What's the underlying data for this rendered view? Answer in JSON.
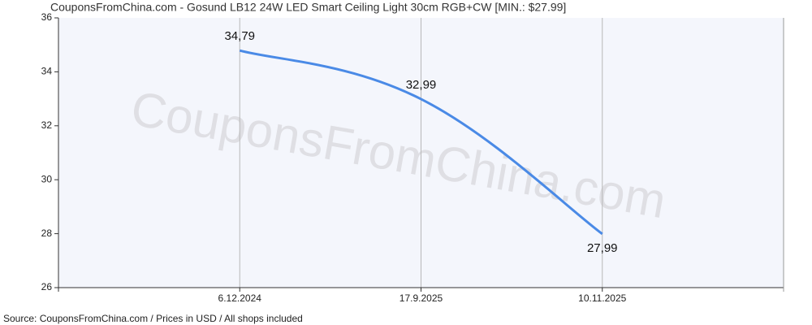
{
  "chart_data": {
    "type": "line",
    "title": "CouponsFromChina.com - Gosund LB12 24W LED Smart Ceiling Light 30cm RGB+CW [MIN.: $27.99]",
    "watermark": "CouponsFromChina.com",
    "source": "Source: CouponsFromChina.com / Prices in USD / All shops included",
    "categories": [
      "6.12.2024",
      "17.9.2025",
      "10.11.2025"
    ],
    "series": [
      {
        "color": "#4a8ae6",
        "values": [
          34.79,
          32.99,
          27.99
        ],
        "value_labels": [
          "34,79",
          "32,99",
          "27,99"
        ]
      }
    ],
    "ylim": [
      26,
      36
    ],
    "yticks": [
      26,
      28,
      30,
      32,
      34,
      36
    ],
    "grid": true
  }
}
